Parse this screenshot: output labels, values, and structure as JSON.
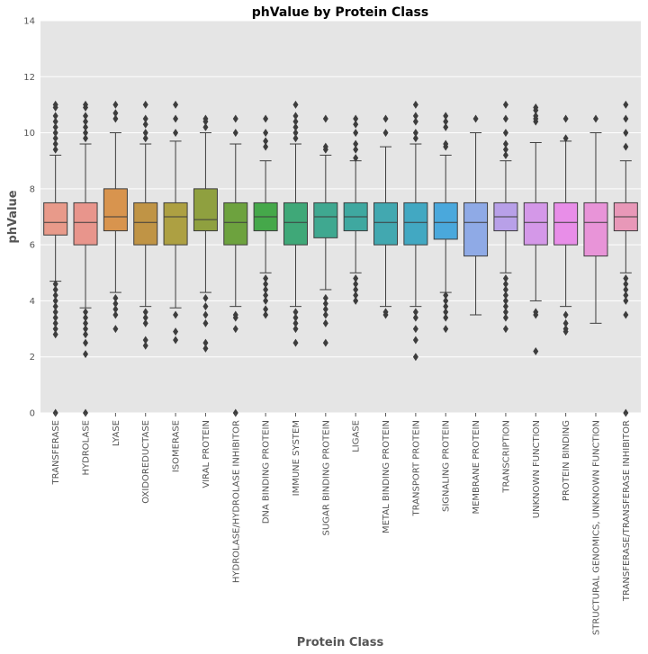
{
  "chart_data": {
    "type": "box",
    "title": "phValue by Protein Class",
    "xlabel": "Protein Class",
    "ylabel": "phValue",
    "ylim": [
      0,
      14
    ],
    "yticks": [
      0,
      2,
      4,
      6,
      8,
      10,
      12,
      14
    ],
    "grid": true,
    "legend": "none",
    "categories": [
      {
        "name": "TRANSFERASE",
        "color": "#E89A8A",
        "q1": 6.35,
        "median": 6.8,
        "q3": 7.5,
        "whisker_low": 4.7,
        "whisker_high": 9.2,
        "outliers": [
          2.8,
          3.0,
          3.2,
          3.4,
          3.6,
          3.8,
          4.0,
          4.2,
          4.4,
          4.6,
          0.0,
          9.4,
          9.6,
          9.8,
          10.0,
          10.2,
          10.4,
          10.6,
          10.9,
          11.0
        ]
      },
      {
        "name": "HYDROLASE",
        "color": "#E8958C",
        "q1": 6.0,
        "median": 6.8,
        "q3": 7.5,
        "whisker_low": 3.75,
        "whisker_high": 9.6,
        "outliers": [
          2.1,
          2.5,
          2.8,
          3.0,
          3.2,
          3.4,
          3.6,
          0.0,
          9.8,
          10.0,
          10.2,
          10.4,
          10.6,
          10.9,
          11.0
        ]
      },
      {
        "name": "LYASE",
        "color": "#D8944E",
        "q1": 6.5,
        "median": 7.0,
        "q3": 8.0,
        "whisker_low": 4.3,
        "whisker_high": 10.0,
        "outliers": [
          3.0,
          3.5,
          3.7,
          3.9,
          4.1,
          10.5,
          10.7,
          11.0
        ]
      },
      {
        "name": "OXIDOREDUCTASE",
        "color": "#C09445",
        "q1": 6.0,
        "median": 6.8,
        "q3": 7.5,
        "whisker_low": 3.8,
        "whisker_high": 9.6,
        "outliers": [
          2.4,
          2.6,
          3.2,
          3.4,
          3.6,
          9.8,
          10.0,
          10.3,
          10.5,
          11.0
        ]
      },
      {
        "name": "ISOMERASE",
        "color": "#ADA042",
        "q1": 6.0,
        "median": 7.0,
        "q3": 7.5,
        "whisker_low": 3.75,
        "whisker_high": 9.7,
        "outliers": [
          2.6,
          2.9,
          3.5,
          10.0,
          10.5,
          11.0
        ]
      },
      {
        "name": "VIRAL PROTEIN",
        "color": "#8FA03F",
        "q1": 6.5,
        "median": 6.9,
        "q3": 8.0,
        "whisker_low": 4.3,
        "whisker_high": 10.0,
        "outliers": [
          2.3,
          2.5,
          3.2,
          3.5,
          3.8,
          4.1,
          10.2,
          10.4,
          10.5
        ]
      },
      {
        "name": "HYDROLASE/HYDROLASE INHIBITOR",
        "color": "#6DA23E",
        "q1": 6.0,
        "median": 6.8,
        "q3": 7.5,
        "whisker_low": 3.8,
        "whisker_high": 9.6,
        "outliers": [
          0.0,
          3.0,
          3.4,
          3.5,
          10.0,
          10.5
        ]
      },
      {
        "name": "DNA BINDING PROTEIN",
        "color": "#45A84A",
        "q1": 6.5,
        "median": 7.0,
        "q3": 7.5,
        "whisker_low": 5.0,
        "whisker_high": 9.0,
        "outliers": [
          3.5,
          3.7,
          4.0,
          4.2,
          4.4,
          4.6,
          4.8,
          9.5,
          9.7,
          10.0,
          10.5
        ]
      },
      {
        "name": "IMMUNE SYSTEM",
        "color": "#3FA878",
        "q1": 6.0,
        "median": 6.8,
        "q3": 7.5,
        "whisker_low": 3.8,
        "whisker_high": 9.6,
        "outliers": [
          2.5,
          3.0,
          3.2,
          3.4,
          3.6,
          9.8,
          10.0,
          10.2,
          10.4,
          10.6,
          11.0
        ]
      },
      {
        "name": "SUGAR BINDING PROTEIN",
        "color": "#3FA890",
        "q1": 6.25,
        "median": 7.0,
        "q3": 7.5,
        "whisker_low": 4.4,
        "whisker_high": 9.2,
        "outliers": [
          2.5,
          3.2,
          3.5,
          3.7,
          3.9,
          4.1,
          9.4,
          9.5,
          10.5
        ]
      },
      {
        "name": "LIGASE",
        "color": "#3FA8A0",
        "q1": 6.5,
        "median": 7.0,
        "q3": 7.5,
        "whisker_low": 5.0,
        "whisker_high": 9.0,
        "outliers": [
          4.0,
          4.2,
          4.4,
          4.6,
          4.8,
          9.1,
          9.4,
          9.6,
          10.0,
          10.3,
          10.5
        ]
      },
      {
        "name": "METAL BINDING PROTEIN",
        "color": "#42A8B0",
        "q1": 6.0,
        "median": 6.8,
        "q3": 7.5,
        "whisker_low": 3.8,
        "whisker_high": 9.5,
        "outliers": [
          3.5,
          3.6,
          10.0,
          10.5
        ]
      },
      {
        "name": "TRANSPORT PROTEIN",
        "color": "#42A8C2",
        "q1": 6.0,
        "median": 6.8,
        "q3": 7.5,
        "whisker_low": 3.8,
        "whisker_high": 9.6,
        "outliers": [
          2.0,
          2.6,
          3.0,
          3.4,
          3.6,
          9.8,
          10.0,
          10.4,
          10.6,
          11.0
        ]
      },
      {
        "name": "SIGNALING PROTEIN",
        "color": "#4AA8DC",
        "q1": 6.2,
        "median": 6.8,
        "q3": 7.5,
        "whisker_low": 4.3,
        "whisker_high": 9.2,
        "outliers": [
          3.0,
          3.4,
          3.6,
          3.8,
          4.0,
          4.2,
          9.5,
          9.6,
          10.2,
          10.4,
          10.6
        ]
      },
      {
        "name": "MEMBRANE PROTEIN",
        "color": "#8FAAE6",
        "q1": 5.6,
        "median": 6.8,
        "q3": 7.5,
        "whisker_low": 3.5,
        "whisker_high": 10.0,
        "outliers": [
          10.5
        ]
      },
      {
        "name": "TRANSCRIPTION",
        "color": "#B8A0E8",
        "q1": 6.5,
        "median": 7.0,
        "q3": 7.5,
        "whisker_low": 5.0,
        "whisker_high": 9.0,
        "outliers": [
          3.0,
          3.4,
          3.6,
          3.8,
          4.0,
          4.2,
          4.4,
          4.6,
          4.8,
          9.2,
          9.4,
          9.6,
          10.0,
          10.5,
          11.0
        ]
      },
      {
        "name": "UNKNOWN FUNCTION",
        "color": "#D498E8",
        "q1": 6.0,
        "median": 6.8,
        "q3": 7.5,
        "whisker_low": 4.0,
        "whisker_high": 9.65,
        "outliers": [
          2.2,
          3.5,
          3.6,
          10.4,
          10.5,
          10.6,
          10.8,
          10.9
        ]
      },
      {
        "name": "PROTEIN BINDING",
        "color": "#E88EE8",
        "q1": 6.0,
        "median": 6.8,
        "q3": 7.5,
        "whisker_low": 3.8,
        "whisker_high": 9.7,
        "outliers": [
          2.9,
          3.0,
          3.2,
          3.5,
          9.8,
          10.5
        ]
      },
      {
        "name": "STRUCTURAL GENOMICS, UNKNOWN FUNCTION",
        "color": "#E894D8",
        "q1": 5.6,
        "median": 6.8,
        "q3": 7.5,
        "whisker_low": 3.2,
        "whisker_high": 10.0,
        "outliers": [
          10.5
        ]
      },
      {
        "name": "TRANSFERASE/TRANSFERASE INHIBITOR",
        "color": "#E898B8",
        "q1": 6.5,
        "median": 7.0,
        "q3": 7.5,
        "whisker_low": 5.0,
        "whisker_high": 9.0,
        "outliers": [
          0.0,
          3.5,
          4.0,
          4.2,
          4.4,
          4.6,
          4.8,
          9.5,
          10.0,
          10.5,
          11.0
        ]
      }
    ]
  }
}
